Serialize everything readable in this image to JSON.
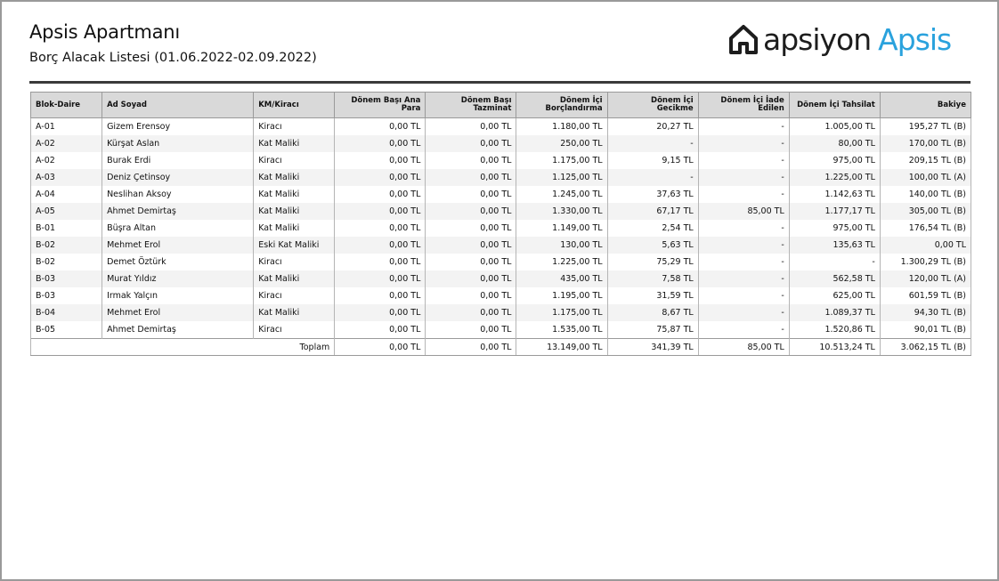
{
  "header": {
    "title": "Apsis Apartmanı",
    "subtitle": "Borç Alacak Listesi (01.06.2022-02.09.2022)",
    "logo_text_1": "apsiyon",
    "logo_text_2": "Apsis",
    "logo_icon": "house-icon"
  },
  "colors": {
    "accent": "#2aa2dd",
    "header_bg": "#d9d9d9",
    "rule": "#3a3a3a"
  },
  "table": {
    "columns": [
      "Blok-Daire",
      "Ad Soyad",
      "KM/Kiracı",
      "Dönem Başı Ana Para",
      "Dönem Başı Tazminat",
      "Dönem İçi Borçlandırma",
      "Dönem İçi Gecikme",
      "Dönem İçi İade Edilen",
      "Dönem İçi Tahsilat",
      "Bakiye"
    ],
    "rows": [
      [
        "A-01",
        "Gizem Erensoy",
        "Kiracı",
        "0,00 TL",
        "0,00 TL",
        "1.180,00 TL",
        "20,27 TL",
        "-",
        "1.005,00 TL",
        "195,27 TL (B)"
      ],
      [
        "A-02",
        "Kürşat Aslan",
        "Kat Maliki",
        "0,00 TL",
        "0,00 TL",
        "250,00 TL",
        "-",
        "-",
        "80,00 TL",
        "170,00 TL (B)"
      ],
      [
        "A-02",
        "Burak Erdi",
        "Kiracı",
        "0,00 TL",
        "0,00 TL",
        "1.175,00 TL",
        "9,15 TL",
        "-",
        "975,00 TL",
        "209,15 TL (B)"
      ],
      [
        "A-03",
        "Deniz Çetinsoy",
        "Kat Maliki",
        "0,00 TL",
        "0,00 TL",
        "1.125,00 TL",
        "-",
        "-",
        "1.225,00 TL",
        "100,00 TL (A)"
      ],
      [
        "A-04",
        "Neslihan Aksoy",
        "Kat Maliki",
        "0,00 TL",
        "0,00 TL",
        "1.245,00 TL",
        "37,63 TL",
        "-",
        "1.142,63 TL",
        "140,00 TL (B)"
      ],
      [
        "A-05",
        "Ahmet Demirtaş",
        "Kat Maliki",
        "0,00 TL",
        "0,00 TL",
        "1.330,00 TL",
        "67,17 TL",
        "85,00 TL",
        "1.177,17 TL",
        "305,00 TL (B)"
      ],
      [
        "B-01",
        "Büşra Altan",
        "Kat Maliki",
        "0,00 TL",
        "0,00 TL",
        "1.149,00 TL",
        "2,54 TL",
        "-",
        "975,00 TL",
        "176,54 TL (B)"
      ],
      [
        "B-02",
        "Mehmet Erol",
        "Eski Kat Maliki",
        "0,00 TL",
        "0,00 TL",
        "130,00 TL",
        "5,63 TL",
        "-",
        "135,63 TL",
        "0,00 TL"
      ],
      [
        "B-02",
        "Demet Öztürk",
        "Kiracı",
        "0,00 TL",
        "0,00 TL",
        "1.225,00 TL",
        "75,29 TL",
        "-",
        "-",
        "1.300,29 TL (B)"
      ],
      [
        "B-03",
        "Murat Yıldız",
        "Kat Maliki",
        "0,00 TL",
        "0,00 TL",
        "435,00 TL",
        "7,58 TL",
        "-",
        "562,58 TL",
        "120,00 TL (A)"
      ],
      [
        "B-03",
        "Irmak Yalçın",
        "Kiracı",
        "0,00 TL",
        "0,00 TL",
        "1.195,00 TL",
        "31,59 TL",
        "-",
        "625,00 TL",
        "601,59 TL (B)"
      ],
      [
        "B-04",
        "Mehmet Erol",
        "Kat Maliki",
        "0,00 TL",
        "0,00 TL",
        "1.175,00 TL",
        "8,67 TL",
        "-",
        "1.089,37 TL",
        "94,30 TL (B)"
      ],
      [
        "B-05",
        "Ahmet Demirtaş",
        "Kiracı",
        "0,00 TL",
        "0,00 TL",
        "1.535,00 TL",
        "75,87 TL",
        "-",
        "1.520,86 TL",
        "90,01 TL (B)"
      ]
    ],
    "total": {
      "label": "Toplam",
      "values": [
        "0,00 TL",
        "0,00 TL",
        "13.149,00 TL",
        "341,39 TL",
        "85,00 TL",
        "10.513,24 TL",
        "3.062,15 TL (B)"
      ]
    }
  }
}
